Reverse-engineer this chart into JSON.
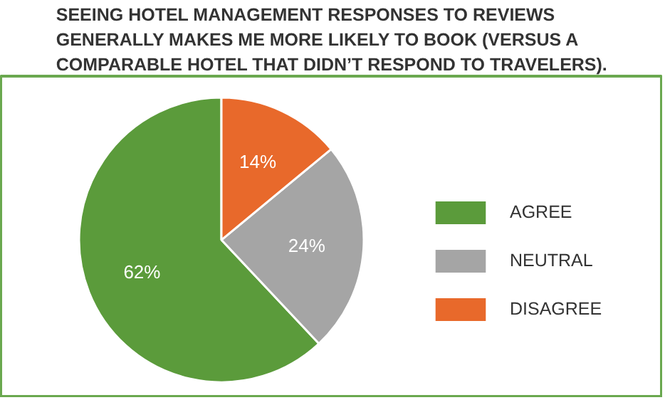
{
  "chart_data": {
    "type": "pie",
    "title": "SEEING HOTEL MANAGEMENT RESPONSES TO REVIEWS GENERALLY MAKES ME MORE LIKELY TO BOOK (VERSUS A COMPARABLE HOTEL THAT DIDN’T RESPOND TO TRAVELERS).",
    "categories": [
      "AGREE",
      "NEUTRAL",
      "DISAGREE"
    ],
    "values": [
      62,
      24,
      14
    ],
    "colors": [
      "#5b9b3b",
      "#a5a5a5",
      "#e8692b"
    ],
    "value_labels": [
      "62%",
      "24%",
      "14%"
    ],
    "legend": "right"
  }
}
